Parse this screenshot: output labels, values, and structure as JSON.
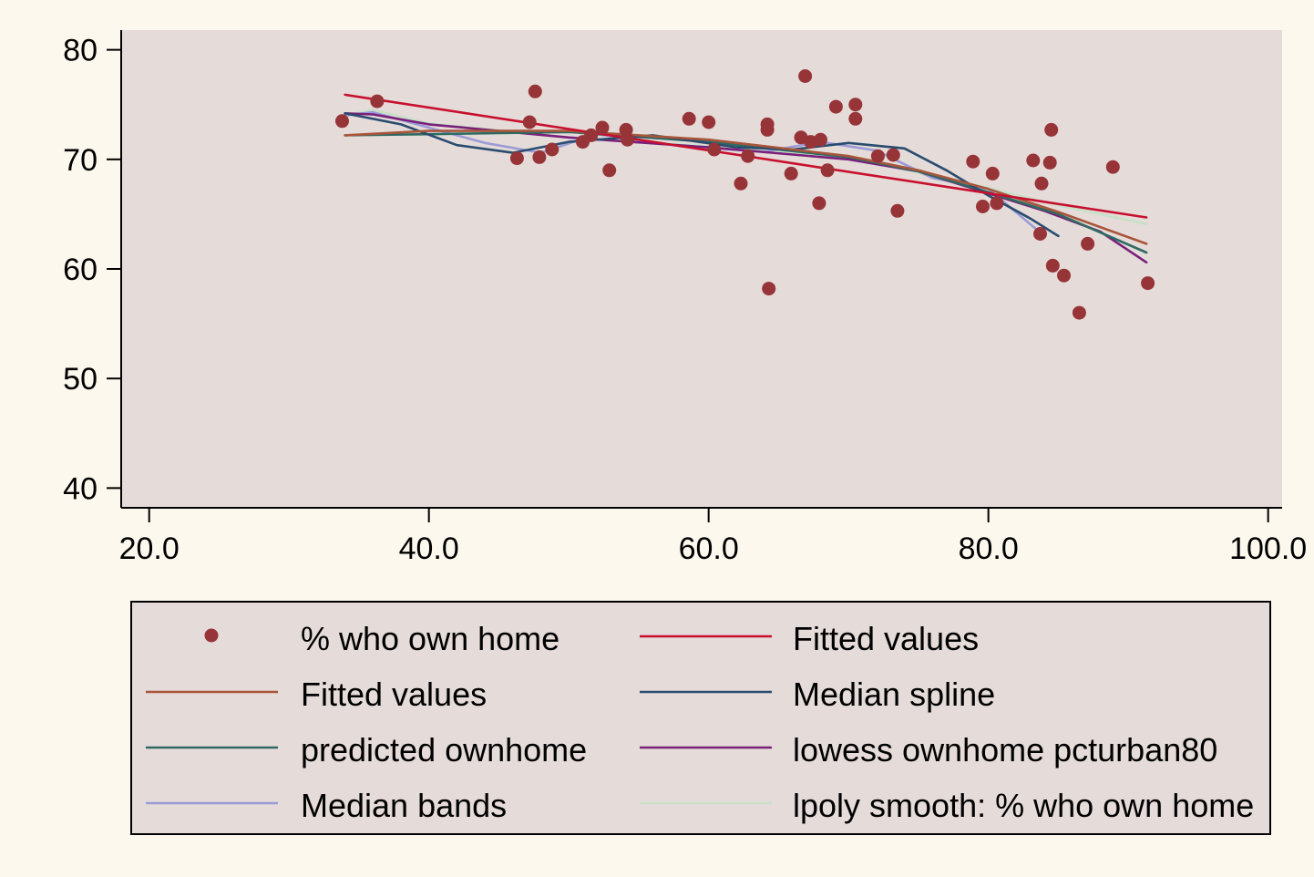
{
  "chart_data": {
    "type": "scatter",
    "title": "",
    "xlabel": "",
    "ylabel": "",
    "xlim": [
      18,
      101
    ],
    "ylim": [
      38.2,
      81.8
    ],
    "xticks": [
      20,
      40,
      60,
      80,
      100
    ],
    "xtick_labels": [
      "20.0",
      "40.0",
      "60.0",
      "80.0",
      "100.0"
    ],
    "yticks": [
      40,
      50,
      60,
      70,
      80
    ],
    "ytick_labels": [
      "40",
      "50",
      "60",
      "70",
      "80"
    ],
    "grid": false,
    "legend_position": "bottom",
    "colors": {
      "page_background": "#fdf8ee",
      "plot_background": "#e5dbd9",
      "legend_background": "#e5dbd9",
      "axis": "#000000"
    },
    "scatter": {
      "name": "% who own home",
      "color": "#973438",
      "points": [
        [
          33.8,
          73.5
        ],
        [
          36.3,
          75.3
        ],
        [
          46.3,
          70.1
        ],
        [
          47.2,
          73.4
        ],
        [
          47.6,
          76.2
        ],
        [
          47.9,
          70.2
        ],
        [
          48.8,
          70.9
        ],
        [
          51.0,
          71.6
        ],
        [
          51.6,
          72.2
        ],
        [
          52.4,
          72.9
        ],
        [
          52.9,
          69.0
        ],
        [
          54.1,
          72.7
        ],
        [
          54.2,
          71.8
        ],
        [
          58.6,
          73.7
        ],
        [
          60.0,
          73.4
        ],
        [
          60.4,
          70.9
        ],
        [
          62.3,
          67.8
        ],
        [
          62.8,
          70.3
        ],
        [
          64.2,
          73.2
        ],
        [
          64.2,
          72.7
        ],
        [
          64.3,
          58.2
        ],
        [
          65.9,
          68.7
        ],
        [
          66.6,
          72.0
        ],
        [
          66.9,
          77.6
        ],
        [
          67.3,
          71.6
        ],
        [
          67.9,
          66.0
        ],
        [
          68.0,
          71.8
        ],
        [
          68.5,
          69.0
        ],
        [
          69.1,
          74.8
        ],
        [
          70.5,
          75.0
        ],
        [
          70.5,
          73.7
        ],
        [
          72.1,
          70.3
        ],
        [
          73.2,
          70.4
        ],
        [
          73.5,
          65.3
        ],
        [
          78.9,
          69.8
        ],
        [
          79.6,
          65.7
        ],
        [
          80.3,
          68.7
        ],
        [
          80.6,
          66.0
        ],
        [
          83.2,
          69.9
        ],
        [
          83.7,
          63.2
        ],
        [
          83.8,
          67.8
        ],
        [
          84.4,
          69.7
        ],
        [
          84.5,
          72.7
        ],
        [
          84.6,
          60.3
        ],
        [
          85.4,
          59.4
        ],
        [
          86.5,
          56.0
        ],
        [
          87.1,
          62.3
        ],
        [
          88.9,
          69.3
        ],
        [
          91.4,
          58.7
        ]
      ]
    },
    "series": [
      {
        "name": "Fitted values",
        "color": "#c8102e",
        "x": [
          34,
          91.3
        ],
        "values": [
          75.9,
          64.7
        ]
      },
      {
        "name": "Fitted values",
        "color": "#a8553a",
        "x": [
          34,
          40,
          50,
          60,
          70,
          75,
          80,
          85,
          91.3
        ],
        "values": [
          72.2,
          72.6,
          72.6,
          71.8,
          70.3,
          69.0,
          67.3,
          65.2,
          62.3
        ]
      },
      {
        "name": "Median spline",
        "color": "#2a4c6e",
        "x": [
          34,
          38,
          42,
          46,
          50,
          56,
          62,
          66,
          70,
          74,
          77,
          80,
          83,
          85
        ],
        "values": [
          74.2,
          73.2,
          71.3,
          70.6,
          71.6,
          72.2,
          71.1,
          70.9,
          71.5,
          71.0,
          69.0,
          66.7,
          64.6,
          63.0
        ]
      },
      {
        "name": "predicted ownhome",
        "color": "#2e6a62",
        "x": [
          34,
          40,
          50,
          60,
          70,
          75,
          80,
          85,
          91.3
        ],
        "values": [
          72.2,
          72.3,
          72.5,
          71.6,
          70.2,
          68.9,
          67.0,
          65.0,
          61.5
        ]
      },
      {
        "name": "lowess ownhome pcturban80",
        "color": "#7a1f7a",
        "x": [
          34,
          36,
          40,
          50,
          60,
          70,
          75,
          80,
          84,
          88,
          91.3
        ],
        "values": [
          74.2,
          74.1,
          73.2,
          72.0,
          71.1,
          70.0,
          68.9,
          66.9,
          65.3,
          63.4,
          60.6
        ]
      },
      {
        "name": "Median bands",
        "color": "#9b9bd8",
        "x": [
          34,
          36,
          40,
          44,
          48,
          52,
          58,
          64,
          68,
          72,
          76,
          80,
          84
        ],
        "values": [
          74.0,
          74.3,
          72.9,
          71.5,
          70.6,
          72.3,
          71.2,
          70.7,
          71.6,
          70.8,
          68.3,
          67.3,
          63.0
        ]
      },
      {
        "name": "lpoly smooth: % who own home",
        "color": "#c8e0c8",
        "x": [
          34,
          36,
          40,
          50,
          60,
          70,
          80,
          85,
          91.3
        ],
        "values": [
          74.0,
          74.5,
          73.3,
          72.0,
          71.2,
          70.2,
          67.4,
          65.8,
          64.1
        ]
      }
    ]
  },
  "legend": {
    "items": [
      {
        "label": "% who own home",
        "symbol": "dot",
        "color": "#973438"
      },
      {
        "label": "Fitted values",
        "symbol": "line",
        "color": "#c8102e"
      },
      {
        "label": "Fitted values",
        "symbol": "line",
        "color": "#a8553a"
      },
      {
        "label": "Median spline",
        "symbol": "line",
        "color": "#2a4c6e"
      },
      {
        "label": "predicted ownhome",
        "symbol": "line",
        "color": "#2e6a62"
      },
      {
        "label": "lowess ownhome pcturban80",
        "symbol": "line",
        "color": "#7a1f7a"
      },
      {
        "label": "Median bands",
        "symbol": "line",
        "color": "#9b9bd8"
      },
      {
        "label": "lpoly smooth: % who own home",
        "symbol": "line",
        "color": "#c8e0c8"
      }
    ]
  }
}
